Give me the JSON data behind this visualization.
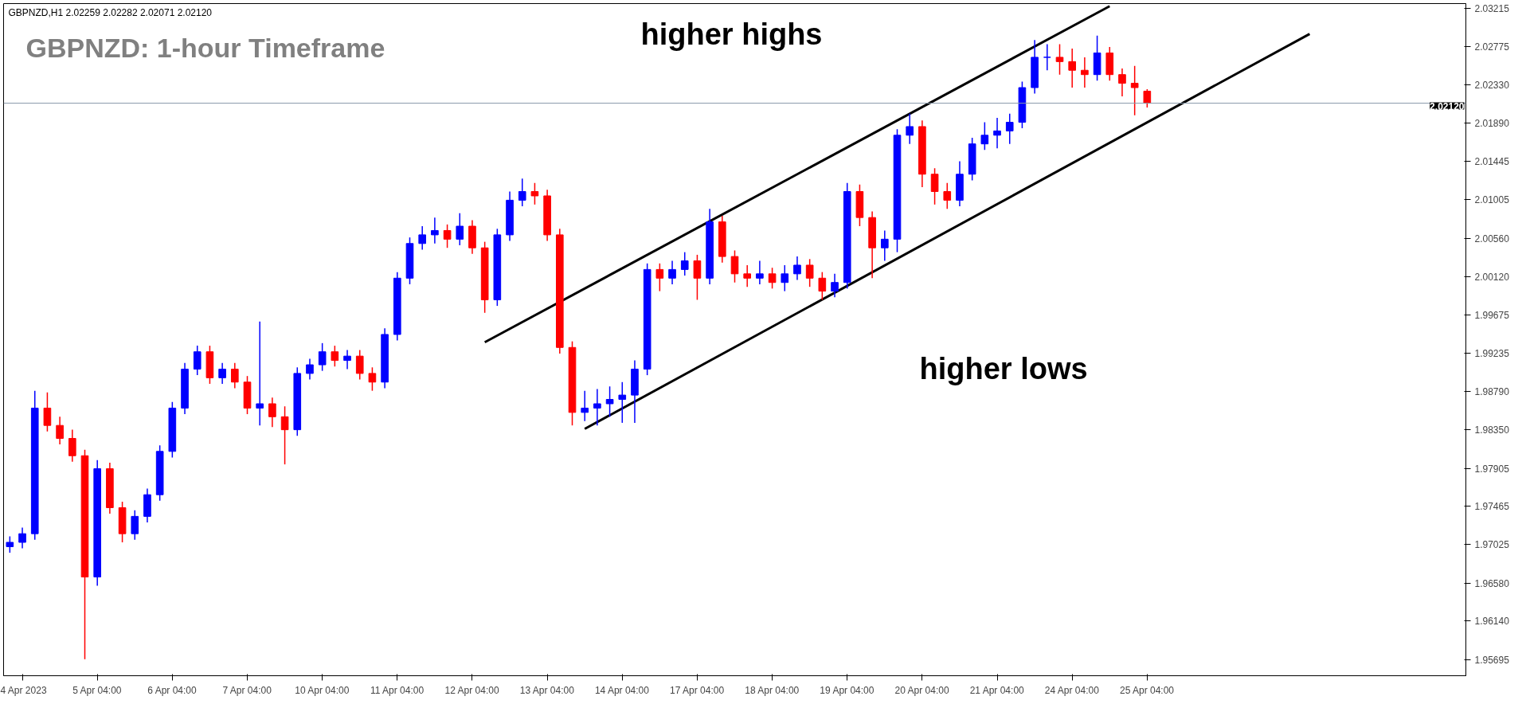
{
  "chart_data": {
    "type": "candlestick",
    "title": "GBPNZD,H1  2.02259 2.02282 2.02071 2.02120",
    "subtitle": "GBPNZD: 1-hour Timeframe",
    "annotations": [
      "higher highs",
      "higher lows"
    ],
    "categories": [
      null,
      "4 Apr 2023",
      null,
      null,
      null,
      null,
      null,
      "5 Apr 04:00",
      null,
      null,
      null,
      null,
      null,
      "6 Apr 04:00",
      null,
      null,
      null,
      null,
      null,
      "7 Apr 04:00",
      null,
      null,
      null,
      null,
      null,
      "10 Apr 04:00",
      null,
      null,
      null,
      null,
      null,
      "11 Apr 04:00",
      null,
      null,
      null,
      null,
      null,
      "12 Apr 04:00",
      null,
      null,
      null,
      null,
      null,
      "13 Apr 04:00",
      null,
      null,
      null,
      null,
      null,
      "14 Apr 04:00",
      null,
      null,
      null,
      null,
      null,
      "17 Apr 04:00",
      null,
      null,
      null,
      null,
      null,
      "18 Apr 04:00",
      null,
      null,
      null,
      null,
      null,
      "19 Apr 04:00",
      null,
      null,
      null,
      null,
      null,
      "20 Apr 04:00",
      null,
      null,
      null,
      null,
      null,
      "21 Apr 04:00",
      null,
      null,
      null,
      null,
      null,
      "24 Apr 04:00",
      null,
      null,
      null,
      null,
      null,
      "25 Apr 04:00",
      null,
      null,
      null,
      null,
      null,
      null,
      null,
      null,
      null,
      null,
      null,
      null,
      null,
      null,
      null,
      null,
      null,
      null,
      null,
      null,
      null,
      null,
      null,
      null,
      null
    ],
    "ohlc": [
      [
        1.97,
        1.9712,
        1.9693,
        1.9705
      ],
      [
        1.9705,
        1.9722,
        1.9698,
        1.9715
      ],
      [
        1.9715,
        1.988,
        1.9708,
        1.986
      ],
      [
        1.986,
        1.9878,
        1.9833,
        1.984
      ],
      [
        1.984,
        1.985,
        1.9818,
        1.9825
      ],
      [
        1.9825,
        1.9835,
        1.9798,
        1.9805
      ],
      [
        1.9805,
        1.9812,
        1.957,
        1.9665
      ],
      [
        1.9665,
        1.98,
        1.9655,
        1.979
      ],
      [
        1.979,
        1.9797,
        1.9738,
        1.9745
      ],
      [
        1.9745,
        1.9752,
        1.9705,
        1.9715
      ],
      [
        1.9715,
        1.9742,
        1.9708,
        1.9735
      ],
      [
        1.9735,
        1.9767,
        1.9728,
        1.976
      ],
      [
        1.976,
        1.9817,
        1.9753,
        1.981
      ],
      [
        1.981,
        1.9867,
        1.9803,
        1.986
      ],
      [
        1.986,
        1.9912,
        1.9853,
        1.9905
      ],
      [
        1.9905,
        1.9932,
        1.9898,
        1.9925
      ],
      [
        1.9925,
        1.9932,
        1.9888,
        1.9895
      ],
      [
        1.9895,
        1.9912,
        1.9888,
        1.9905
      ],
      [
        1.9905,
        1.9912,
        1.9883,
        1.989
      ],
      [
        1.989,
        1.9897,
        1.9853,
        1.986
      ],
      [
        1.986,
        1.996,
        1.984,
        1.9865
      ],
      [
        1.9865,
        1.9872,
        1.9838,
        1.985
      ],
      [
        1.985,
        1.9862,
        1.9795,
        1.9835
      ],
      [
        1.9835,
        1.9907,
        1.9828,
        1.99
      ],
      [
        1.99,
        1.9917,
        1.9893,
        1.991
      ],
      [
        1.991,
        1.9935,
        1.9903,
        1.9925
      ],
      [
        1.9925,
        1.9932,
        1.9908,
        1.9915
      ],
      [
        1.9915,
        1.9927,
        1.9905,
        1.992
      ],
      [
        1.992,
        1.9927,
        1.9893,
        1.99
      ],
      [
        1.99,
        1.9907,
        1.988,
        1.989
      ],
      [
        1.989,
        1.9952,
        1.9883,
        1.9945
      ],
      [
        1.9945,
        2.0017,
        1.9938,
        2.001
      ],
      [
        2.001,
        2.0057,
        2.0003,
        2.005
      ],
      [
        2.005,
        2.007,
        2.0043,
        2.006
      ],
      [
        2.006,
        2.008,
        2.005,
        2.0065
      ],
      [
        2.0065,
        2.0072,
        2.0045,
        2.0055
      ],
      [
        2.0055,
        2.0085,
        2.0048,
        2.007
      ],
      [
        2.007,
        2.0077,
        2.0038,
        2.0045
      ],
      [
        2.0045,
        2.0052,
        1.997,
        1.9985
      ],
      [
        1.9985,
        2.0067,
        1.9978,
        2.006
      ],
      [
        2.006,
        2.011,
        2.0053,
        2.01
      ],
      [
        2.01,
        2.0125,
        2.0093,
        2.011
      ],
      [
        2.011,
        2.012,
        2.0095,
        2.0105
      ],
      [
        2.0105,
        2.0112,
        2.0053,
        2.006
      ],
      [
        2.006,
        2.0067,
        1.9923,
        1.993
      ],
      [
        1.993,
        1.9937,
        1.984,
        1.9855
      ],
      [
        1.9855,
        1.988,
        1.9845,
        1.986
      ],
      [
        1.986,
        1.9882,
        1.984,
        1.9865
      ],
      [
        1.9865,
        1.9885,
        1.985,
        1.987
      ],
      [
        1.987,
        1.989,
        1.9843,
        1.9875
      ],
      [
        1.9875,
        1.9915,
        1.9843,
        1.9905
      ],
      [
        1.9905,
        2.0027,
        1.9898,
        2.002
      ],
      [
        2.002,
        2.0027,
        1.9995,
        2.001
      ],
      [
        2.001,
        2.003,
        2.0003,
        2.002
      ],
      [
        2.002,
        2.004,
        2.0013,
        2.003
      ],
      [
        2.003,
        2.0037,
        1.9985,
        2.001
      ],
      [
        2.001,
        2.009,
        2.0003,
        2.0075
      ],
      [
        2.0075,
        2.0082,
        2.0028,
        2.0035
      ],
      [
        2.0035,
        2.0042,
        2.0005,
        2.0015
      ],
      [
        2.0015,
        2.0025,
        2.0,
        2.001
      ],
      [
        2.001,
        2.003,
        2.0003,
        2.0015
      ],
      [
        2.0015,
        2.0022,
        1.9998,
        2.0005
      ],
      [
        2.0005,
        2.0025,
        1.9995,
        2.0015
      ],
      [
        2.0015,
        2.0035,
        2.0008,
        2.0025
      ],
      [
        2.0025,
        2.0032,
        2.0,
        2.001
      ],
      [
        2.001,
        2.0017,
        1.9985,
        1.9995
      ],
      [
        1.9995,
        2.0015,
        1.9988,
        2.0005
      ],
      [
        2.0005,
        2.012,
        1.9998,
        2.011
      ],
      [
        2.011,
        2.0118,
        2.007,
        2.008
      ],
      [
        2.008,
        2.0087,
        2.001,
        2.0045
      ],
      [
        2.0045,
        2.0065,
        2.003,
        2.0055
      ],
      [
        2.0055,
        2.0182,
        2.004,
        2.0175
      ],
      [
        2.0175,
        2.02,
        2.0165,
        2.0185
      ],
      [
        2.0185,
        2.0192,
        2.0115,
        2.013
      ],
      [
        2.013,
        2.0137,
        2.0095,
        2.011
      ],
      [
        2.011,
        2.012,
        2.009,
        2.01
      ],
      [
        2.01,
        2.0145,
        2.0093,
        2.013
      ],
      [
        2.013,
        2.0172,
        2.0123,
        2.0165
      ],
      [
        2.0165,
        2.019,
        2.0158,
        2.0175
      ],
      [
        2.0175,
        2.0195,
        2.016,
        2.018
      ],
      [
        2.018,
        2.02,
        2.0165,
        2.019
      ],
      [
        2.019,
        2.0237,
        2.0183,
        2.023
      ],
      [
        2.023,
        2.0285,
        2.0223,
        2.0265
      ],
      [
        2.0265,
        2.028,
        2.025,
        2.0265
      ],
      [
        2.0265,
        2.028,
        2.0245,
        2.026
      ],
      [
        2.026,
        2.0275,
        2.023,
        2.025
      ],
      [
        2.025,
        2.0265,
        2.023,
        2.0245
      ],
      [
        2.0245,
        2.029,
        2.0238,
        2.027
      ],
      [
        2.027,
        2.0277,
        2.0238,
        2.0245
      ],
      [
        2.0245,
        2.0252,
        2.022,
        2.0235
      ],
      [
        2.0235,
        2.0255,
        2.0198,
        2.023
      ],
      [
        2.02259,
        2.02282,
        2.02071,
        2.0212
      ],
      null,
      null,
      null,
      null,
      null,
      null,
      null,
      null,
      null,
      null,
      null,
      null,
      null,
      null,
      null,
      null,
      null,
      null,
      null,
      null,
      null,
      null,
      null,
      null,
      null
    ],
    "colors": [
      "#0000ff",
      "#0000ff",
      "#0000ff",
      "#ff0000",
      "#ff0000",
      "#ff0000",
      "#ff0000",
      "#0000ff",
      "#ff0000",
      "#ff0000",
      "#0000ff",
      "#0000ff",
      "#0000ff",
      "#0000ff",
      "#0000ff",
      "#0000ff",
      "#ff0000",
      "#0000ff",
      "#ff0000",
      "#ff0000",
      "#0000ff",
      "#ff0000",
      "#ff0000",
      "#0000ff",
      "#0000ff",
      "#0000ff",
      "#ff0000",
      "#0000ff",
      "#ff0000",
      "#ff0000",
      "#0000ff",
      "#0000ff",
      "#0000ff",
      "#0000ff",
      "#0000ff",
      "#ff0000",
      "#0000ff",
      "#ff0000",
      "#ff0000",
      "#0000ff",
      "#0000ff",
      "#0000ff",
      "#ff0000",
      "#ff0000",
      "#ff0000",
      "#ff0000",
      "#0000ff",
      "#0000ff",
      "#0000ff",
      "#0000ff",
      "#0000ff",
      "#0000ff",
      "#ff0000",
      "#0000ff",
      "#0000ff",
      "#ff0000",
      "#0000ff",
      "#ff0000",
      "#ff0000",
      "#ff0000",
      "#0000ff",
      "#ff0000",
      "#0000ff",
      "#0000ff",
      "#ff0000",
      "#ff0000",
      "#0000ff",
      "#0000ff",
      "#ff0000",
      "#ff0000",
      "#0000ff",
      "#0000ff",
      "#0000ff",
      "#ff0000",
      "#ff0000",
      "#ff0000",
      "#0000ff",
      "#0000ff",
      "#0000ff",
      "#0000ff",
      "#0000ff",
      "#0000ff",
      "#0000ff",
      "#0000ff",
      "#ff0000",
      "#ff0000",
      "#ff0000",
      "#0000ff",
      "#ff0000",
      "#ff0000",
      "#ff0000",
      "#ff0000",
      null,
      null,
      null,
      null,
      null,
      null,
      null,
      null,
      null,
      null,
      null,
      null,
      null,
      null,
      null,
      null,
      null,
      null,
      null,
      null,
      null,
      null,
      null,
      null,
      null
    ],
    "series": [
      {
        "type": "line",
        "color": "#000000",
        "values": [
          null,
          null,
          null,
          null,
          null,
          null,
          null,
          null,
          null,
          null,
          null,
          null,
          null,
          null,
          null,
          null,
          null,
          null,
          null,
          null,
          null,
          null,
          null,
          null,
          null,
          null,
          null,
          null,
          null,
          null,
          null,
          null,
          null,
          null,
          null,
          null,
          null,
          null,
          1.9936,
          null,
          null,
          null,
          null,
          null,
          null,
          null,
          null,
          null,
          null,
          null,
          null,
          null,
          null,
          null,
          null,
          null,
          null,
          null,
          null,
          null,
          null,
          null,
          null,
          null,
          null,
          null,
          null,
          null,
          null,
          null,
          null,
          null,
          null,
          null,
          null,
          null,
          null,
          null,
          null,
          null,
          null,
          null,
          null,
          null,
          null,
          null,
          null,
          null,
          2.0324,
          null,
          null,
          null,
          null,
          null,
          null,
          null,
          null,
          null,
          null,
          null,
          null,
          null,
          null,
          null,
          null,
          null,
          null,
          null,
          null,
          null,
          null,
          null,
          null,
          null,
          null,
          null,
          null
        ]
      },
      {
        "type": "line",
        "color": "#000000",
        "values": [
          null,
          null,
          null,
          null,
          null,
          null,
          null,
          null,
          null,
          null,
          null,
          null,
          null,
          null,
          null,
          null,
          null,
          null,
          null,
          null,
          null,
          null,
          null,
          null,
          null,
          null,
          null,
          null,
          null,
          null,
          null,
          null,
          null,
          null,
          null,
          null,
          null,
          null,
          null,
          null,
          null,
          null,
          null,
          null,
          null,
          null,
          1.9836,
          null,
          null,
          null,
          null,
          null,
          null,
          null,
          null,
          null,
          null,
          null,
          null,
          null,
          null,
          null,
          null,
          null,
          null,
          null,
          null,
          null,
          null,
          null,
          null,
          null,
          null,
          null,
          null,
          null,
          null,
          null,
          null,
          null,
          null,
          null,
          null,
          null,
          null,
          null,
          null,
          null,
          null,
          null,
          null,
          null,
          null,
          null,
          null,
          null,
          null,
          null,
          null,
          null,
          null,
          null,
          null,
          null,
          2.0292,
          null,
          null,
          null,
          null,
          null,
          null,
          null,
          null,
          null,
          null,
          null,
          null
        ]
      }
    ],
    "ref_lines": [
      {
        "axis": "y",
        "value": 2.0212,
        "label": "2.02120",
        "color": "#8899aa"
      }
    ],
    "ylim": [
      1.9551,
      2.0327
    ],
    "yticks": [
      {
        "value": 2.03215,
        "label": "2.03215"
      },
      {
        "value": 2.02775,
        "label": "2.02775"
      },
      {
        "value": 2.0233,
        "label": "2.02330"
      },
      {
        "value": 2.0189,
        "label": "2.01890"
      },
      {
        "value": 2.01445,
        "label": "2.01445"
      },
      {
        "value": 2.01005,
        "label": "2.01005"
      },
      {
        "value": 2.0056,
        "label": "2.00560"
      },
      {
        "value": 2.0012,
        "label": "2.00120"
      },
      {
        "value": 1.99675,
        "label": "1.99675"
      },
      {
        "value": 1.99235,
        "label": "1.99235"
      },
      {
        "value": 1.9879,
        "label": "1.98790"
      },
      {
        "value": 1.9835,
        "label": "1.98350"
      },
      {
        "value": 1.97905,
        "label": "1.97905"
      },
      {
        "value": 1.97465,
        "label": "1.97465"
      },
      {
        "value": 1.97025,
        "label": "1.97025"
      },
      {
        "value": 1.9658,
        "label": "1.96580"
      },
      {
        "value": 1.9614,
        "label": "1.96140"
      },
      {
        "value": 1.95695,
        "label": "1.95695"
      }
    ],
    "grid": false
  }
}
